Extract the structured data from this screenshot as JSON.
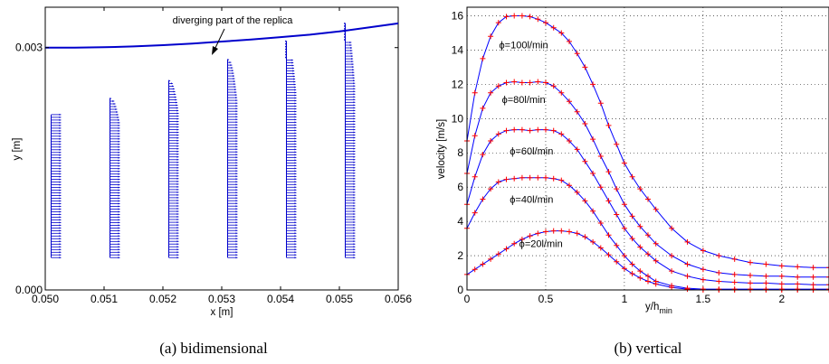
{
  "chart_data": [
    {
      "type": "quiver",
      "xlim": [
        0.05,
        0.056
      ],
      "ylim": [
        0.0,
        0.0035
      ],
      "xticks": [
        "0.050",
        "0.051",
        "0.052",
        "0.053",
        "0.054",
        "0.055",
        "0.056"
      ],
      "xtick_values": [
        0.05,
        0.051,
        0.052,
        0.053,
        0.054,
        0.055,
        0.056
      ],
      "yticks": [
        "0.000",
        "0.003"
      ],
      "ytick_values": [
        0.0,
        0.003
      ],
      "xlabel": "x [m]",
      "ylabel": "y [m]",
      "annotation": "diverging part of the replica",
      "caption": "(a)  bidimensional",
      "wall_curve": {
        "x": [
          0.05,
          0.0505,
          0.051,
          0.0515,
          0.052,
          0.0525,
          0.053,
          0.0535,
          0.054,
          0.0545,
          0.055,
          0.0555,
          0.056
        ],
        "y": [
          0.003,
          0.003,
          0.003005,
          0.003015,
          0.00303,
          0.00305,
          0.003075,
          0.0031,
          0.00313,
          0.00316,
          0.0032,
          0.00325,
          0.0033
        ]
      },
      "profiles": [
        {
          "x0": 0.0501,
          "y_top": 0.00217
        },
        {
          "x0": 0.0511,
          "y_top": 0.00237
        },
        {
          "x0": 0.0521,
          "y_top": 0.00259
        },
        {
          "x0": 0.0531,
          "y_top": 0.00285
        },
        {
          "x0": 0.0541,
          "y_top": 0.00308
        },
        {
          "x0": 0.0551,
          "y_top": 0.0033
        }
      ],
      "profile_y_bottom": 0.0004,
      "color": "#0000cc"
    },
    {
      "type": "line",
      "xlim": [
        0,
        2.3
      ],
      "ylim": [
        0,
        16.5
      ],
      "xticks": [
        "0",
        "0.5",
        "1",
        "1.5",
        "2"
      ],
      "xtick_values": [
        0,
        0.5,
        1,
        1.5,
        2
      ],
      "yticks": [
        "0",
        "2",
        "4",
        "6",
        "8",
        "10",
        "12",
        "14",
        "16"
      ],
      "ytick_values": [
        0,
        2,
        4,
        6,
        8,
        10,
        12,
        14,
        16
      ],
      "xlabel_main": "y/h",
      "xlabel_sub": "min",
      "ylabel": "velocity [m/s]",
      "caption": "(b)  vertical",
      "line_color": "#0000ff",
      "marker_color": "#ff0000",
      "series": [
        {
          "name": "ϕ=100l/min",
          "x": [
            0,
            0.05,
            0.1,
            0.15,
            0.2,
            0.25,
            0.3,
            0.35,
            0.4,
            0.45,
            0.5,
            0.55,
            0.6,
            0.65,
            0.7,
            0.75,
            0.8,
            0.85,
            0.9,
            0.95,
            1.0,
            1.05,
            1.1,
            1.15,
            1.2,
            1.3,
            1.4,
            1.5,
            1.6,
            1.7,
            1.8,
            1.9,
            2.0,
            2.1,
            2.2,
            2.3
          ],
          "values": [
            8.7,
            11.5,
            13.5,
            14.8,
            15.6,
            15.95,
            16.0,
            16.0,
            15.95,
            15.8,
            15.6,
            15.3,
            15.0,
            14.5,
            13.8,
            13.0,
            12.0,
            10.9,
            9.6,
            8.5,
            7.4,
            6.6,
            5.9,
            5.3,
            4.7,
            3.6,
            2.8,
            2.3,
            2.0,
            1.8,
            1.6,
            1.5,
            1.4,
            1.35,
            1.3,
            1.3
          ]
        },
        {
          "name": "ϕ=80l/min",
          "x": [
            0,
            0.05,
            0.1,
            0.15,
            0.2,
            0.25,
            0.3,
            0.35,
            0.4,
            0.45,
            0.5,
            0.55,
            0.6,
            0.65,
            0.7,
            0.75,
            0.8,
            0.85,
            0.9,
            0.95,
            1.0,
            1.05,
            1.1,
            1.15,
            1.2,
            1.3,
            1.4,
            1.5,
            1.6,
            1.7,
            1.8,
            1.9,
            2.0,
            2.1,
            2.2,
            2.3
          ],
          "values": [
            6.8,
            9.0,
            10.6,
            11.5,
            11.9,
            12.1,
            12.15,
            12.1,
            12.1,
            12.15,
            12.1,
            11.9,
            11.5,
            11.0,
            10.4,
            9.7,
            8.8,
            7.8,
            6.9,
            5.9,
            5.0,
            4.3,
            3.7,
            3.2,
            2.7,
            2.0,
            1.5,
            1.2,
            1.0,
            0.9,
            0.85,
            0.8,
            0.8,
            0.75,
            0.75,
            0.75
          ]
        },
        {
          "name": "ϕ=60l/min",
          "x": [
            0,
            0.05,
            0.1,
            0.15,
            0.2,
            0.25,
            0.3,
            0.35,
            0.4,
            0.45,
            0.5,
            0.55,
            0.6,
            0.65,
            0.7,
            0.75,
            0.8,
            0.85,
            0.9,
            0.95,
            1.0,
            1.05,
            1.1,
            1.15,
            1.2,
            1.3,
            1.4,
            1.5,
            1.6,
            1.7,
            1.8,
            1.9,
            2.0,
            2.1,
            2.2,
            2.3
          ],
          "values": [
            5.0,
            6.6,
            7.9,
            8.7,
            9.1,
            9.3,
            9.35,
            9.35,
            9.3,
            9.35,
            9.35,
            9.3,
            9.1,
            8.7,
            8.2,
            7.5,
            6.8,
            6.0,
            5.2,
            4.4,
            3.6,
            3.0,
            2.5,
            2.1,
            1.7,
            1.1,
            0.8,
            0.6,
            0.5,
            0.45,
            0.4,
            0.4,
            0.35,
            0.35,
            0.3,
            0.3
          ]
        },
        {
          "name": "ϕ=40l/min",
          "x": [
            0,
            0.05,
            0.1,
            0.15,
            0.2,
            0.25,
            0.3,
            0.35,
            0.4,
            0.45,
            0.5,
            0.55,
            0.6,
            0.65,
            0.7,
            0.75,
            0.8,
            0.85,
            0.9,
            0.95,
            1.0,
            1.05,
            1.1,
            1.15,
            1.2,
            1.3,
            1.4,
            1.5,
            1.6,
            1.7,
            1.8,
            1.9,
            2.0,
            2.1,
            2.2,
            2.3
          ],
          "values": [
            3.6,
            4.5,
            5.3,
            5.9,
            6.3,
            6.45,
            6.5,
            6.55,
            6.55,
            6.55,
            6.55,
            6.5,
            6.4,
            6.1,
            5.7,
            5.2,
            4.6,
            3.9,
            3.2,
            2.6,
            2.0,
            1.5,
            1.1,
            0.8,
            0.5,
            0.25,
            0.1,
            0.05,
            0.05,
            0.05,
            0.05,
            0.05,
            0.05,
            0.05,
            0.05,
            0.05
          ]
        },
        {
          "name": "ϕ=20l/min",
          "x": [
            0,
            0.05,
            0.1,
            0.15,
            0.2,
            0.25,
            0.3,
            0.35,
            0.4,
            0.45,
            0.5,
            0.55,
            0.6,
            0.65,
            0.7,
            0.75,
            0.8,
            0.85,
            0.9,
            0.95,
            1.0,
            1.05,
            1.1,
            1.15,
            1.2,
            1.3,
            1.4,
            1.5,
            1.6,
            1.7,
            1.8,
            1.9,
            2.0,
            2.1,
            2.2,
            2.3
          ],
          "values": [
            0.9,
            1.2,
            1.5,
            1.8,
            2.1,
            2.4,
            2.7,
            2.95,
            3.15,
            3.3,
            3.4,
            3.45,
            3.45,
            3.4,
            3.3,
            3.1,
            2.8,
            2.45,
            2.05,
            1.65,
            1.25,
            0.95,
            0.7,
            0.5,
            0.35,
            0.15,
            0.05,
            0.0,
            0.0,
            0.0,
            0.0,
            0.0,
            0.0,
            0.0,
            0.0,
            0.0
          ]
        }
      ],
      "series_label_anchor_x": [
        0.36,
        0.36,
        0.41,
        0.41,
        0.47
      ],
      "series_label_anchor_y": [
        14.1,
        10.9,
        7.9,
        5.1,
        2.5
      ]
    }
  ]
}
